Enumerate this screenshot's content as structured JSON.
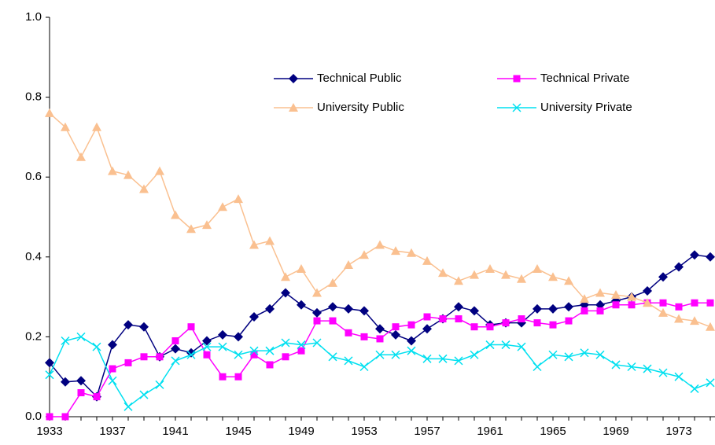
{
  "chart_data": {
    "type": "line",
    "x": [
      1933,
      1934,
      1935,
      1936,
      1937,
      1938,
      1939,
      1940,
      1941,
      1942,
      1943,
      1944,
      1945,
      1946,
      1947,
      1948,
      1949,
      1950,
      1951,
      1952,
      1953,
      1954,
      1955,
      1956,
      1957,
      1958,
      1959,
      1960,
      1961,
      1962,
      1963,
      1964,
      1965,
      1966,
      1967,
      1968,
      1969,
      1970,
      1971,
      1972,
      1973,
      1974,
      1975
    ],
    "xlim": [
      1933,
      1975.3
    ],
    "xticks": [
      1933,
      1937,
      1941,
      1945,
      1949,
      1953,
      1957,
      1961,
      1965,
      1969,
      1973
    ],
    "ylim": [
      0,
      1
    ],
    "yticks": [
      {
        "value": 0,
        "label": "0.0"
      },
      0.2,
      0.4,
      0.6,
      0.8,
      {
        "value": 1,
        "label": "1.0"
      }
    ],
    "grid": false,
    "legend": "top-center",
    "series": [
      {
        "name": "Technical Public",
        "color": "#000080",
        "marker": "diamond",
        "values": [
          0.135,
          0.087,
          0.09,
          0.05,
          0.18,
          0.23,
          0.225,
          0.15,
          0.17,
          0.16,
          0.19,
          0.205,
          0.2,
          0.25,
          0.27,
          0.31,
          0.28,
          0.26,
          0.275,
          0.27,
          0.265,
          0.22,
          0.205,
          0.19,
          0.22,
          0.245,
          0.275,
          0.265,
          0.23,
          0.235,
          0.235,
          0.27,
          0.27,
          0.275,
          0.28,
          0.28,
          0.29,
          0.3,
          0.315,
          0.35,
          0.375,
          0.405,
          0.4
        ]
      },
      {
        "name": "Technical Private",
        "color": "#ff00ff",
        "marker": "square",
        "values": [
          0,
          0,
          0.06,
          0.05,
          0.12,
          0.135,
          0.15,
          0.15,
          0.19,
          0.225,
          0.155,
          0.1,
          0.1,
          0.155,
          0.13,
          0.15,
          0.165,
          0.24,
          0.24,
          0.21,
          0.2,
          0.195,
          0.225,
          0.23,
          0.25,
          0.245,
          0.245,
          0.225,
          0.225,
          0.235,
          0.245,
          0.235,
          0.23,
          0.24,
          0.265,
          0.265,
          0.28,
          0.28,
          0.285,
          0.285,
          0.275,
          0.285,
          0.285
        ]
      },
      {
        "name": "University Public",
        "color": "#fac090",
        "marker": "triangle",
        "values": [
          0.76,
          0.725,
          0.65,
          0.725,
          0.615,
          0.605,
          0.57,
          0.615,
          0.505,
          0.47,
          0.48,
          0.525,
          0.545,
          0.43,
          0.44,
          0.35,
          0.37,
          0.31,
          0.335,
          0.38,
          0.405,
          0.43,
          0.415,
          0.41,
          0.39,
          0.36,
          0.34,
          0.355,
          0.37,
          0.355,
          0.345,
          0.37,
          0.35,
          0.34,
          0.295,
          0.31,
          0.305,
          0.3,
          0.285,
          0.26,
          0.245,
          0.24,
          0.225
        ]
      },
      {
        "name": "University Private",
        "color": "#00e0f0",
        "marker": "x",
        "values": [
          0.105,
          0.19,
          0.2,
          0.175,
          0.09,
          0.025,
          0.055,
          0.08,
          0.14,
          0.155,
          0.175,
          0.175,
          0.155,
          0.165,
          0.165,
          0.185,
          0.18,
          0.185,
          0.15,
          0.14,
          0.125,
          0.155,
          0.155,
          0.165,
          0.145,
          0.145,
          0.14,
          0.155,
          0.18,
          0.18,
          0.175,
          0.125,
          0.155,
          0.15,
          0.16,
          0.155,
          0.13,
          0.125,
          0.12,
          0.11,
          0.1,
          0.07,
          0.085
        ]
      }
    ]
  }
}
